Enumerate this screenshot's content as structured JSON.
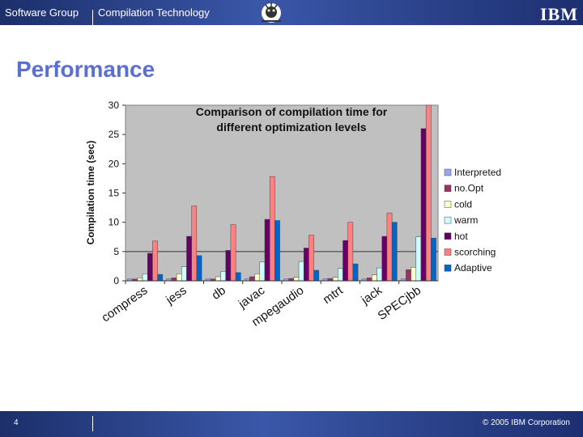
{
  "header": {
    "group": "Software Group",
    "section": "Compilation Technology",
    "logo_text": "IBM"
  },
  "slide": {
    "title": "Performance",
    "page_number": "4",
    "copyright": "© 2005 IBM Corporation"
  },
  "chart_data": {
    "type": "bar",
    "title_line1": "Comparison of compilation time for",
    "title_line2": "different optimization levels",
    "ylabel": "Compilation time (sec)",
    "xlabel": "",
    "ylim": [
      0,
      30
    ],
    "yticks": [
      0,
      5,
      10,
      15,
      20,
      25,
      30
    ],
    "grid": false,
    "legend_position": "right",
    "categories": [
      "compress",
      "jess",
      "db",
      "javac",
      "mpegaudio",
      "mtrt",
      "jack",
      "SPECjbb"
    ],
    "series": [
      {
        "name": "Interpreted",
        "color": "#9aa8f2",
        "values": [
          0.3,
          0.3,
          0.3,
          0.3,
          0.3,
          0.3,
          0.3,
          0.3
        ]
      },
      {
        "name": "no.Opt",
        "color": "#993366",
        "values": [
          0.3,
          0.5,
          0.3,
          0.7,
          0.4,
          0.4,
          0.5,
          1.9
        ]
      },
      {
        "name": "cold",
        "color": "#ffffcc",
        "values": [
          0.5,
          1.2,
          0.7,
          1.2,
          0.6,
          0.6,
          1.0,
          2.3
        ]
      },
      {
        "name": "warm",
        "color": "#ccffff",
        "values": [
          1.2,
          2.4,
          1.6,
          3.2,
          3.3,
          2.1,
          2.2,
          7.5
        ]
      },
      {
        "name": "hot",
        "color": "#660066",
        "values": [
          4.7,
          7.6,
          5.2,
          10.5,
          5.6,
          6.9,
          7.6,
          26.0
        ]
      },
      {
        "name": "scorching",
        "color": "#ff8080",
        "values": [
          6.8,
          12.8,
          9.6,
          17.8,
          7.8,
          10.0,
          11.6,
          30.0
        ]
      },
      {
        "name": "Adaptive",
        "color": "#0066cc",
        "values": [
          1.1,
          4.3,
          1.4,
          10.3,
          1.8,
          2.9,
          10.0,
          7.3
        ]
      }
    ]
  }
}
